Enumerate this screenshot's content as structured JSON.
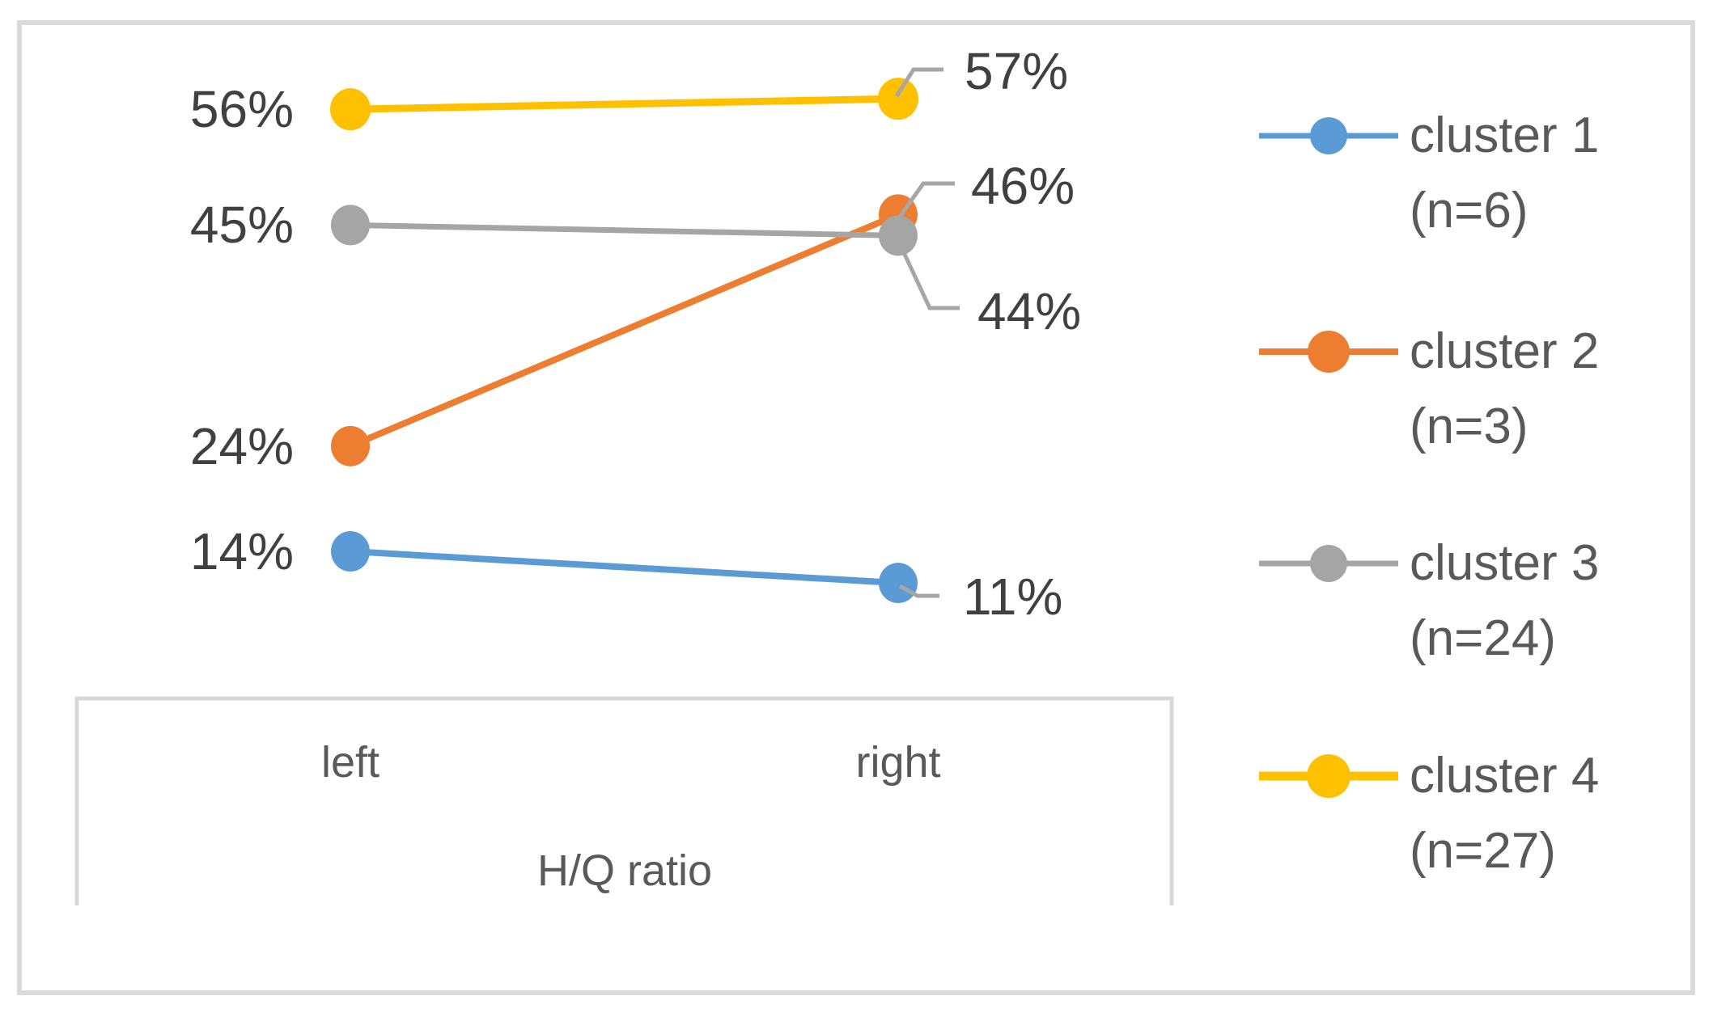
{
  "chart_data": {
    "type": "line",
    "title": "",
    "categories": [
      "left",
      "right"
    ],
    "xlabel": "H/Q ratio",
    "ylabel": "",
    "ylim": [
      0,
      66
    ],
    "grid": false,
    "legend_position": "right",
    "series": [
      {
        "id": "cluster-1",
        "name": "cluster 1",
        "n_label": "(n=6)",
        "color": "#5B9BD5",
        "values": [
          14,
          11
        ],
        "labels": [
          "14%",
          "11%"
        ]
      },
      {
        "id": "cluster-2",
        "name": "cluster 2",
        "n_label": "(n=3)",
        "color": "#ED7D31",
        "values": [
          24,
          46
        ],
        "labels": [
          "24%",
          "46%"
        ]
      },
      {
        "id": "cluster-3",
        "name": "cluster 3",
        "n_label": "(n=24)",
        "color": "#A5A5A5",
        "values": [
          45,
          44
        ],
        "labels": [
          "45%",
          "44%"
        ]
      },
      {
        "id": "cluster-4",
        "name": "cluster 4",
        "n_label": "(n=27)",
        "color": "#FFC000",
        "values": [
          56,
          57
        ],
        "labels": [
          "56%",
          "57%"
        ]
      }
    ],
    "colors": {
      "data_label": "#404040",
      "axis_text": "#595959",
      "legend_text": "#595959",
      "border": "#D9D9D9",
      "leader": "#A6A6A6",
      "background": "#FFFFFF"
    }
  }
}
